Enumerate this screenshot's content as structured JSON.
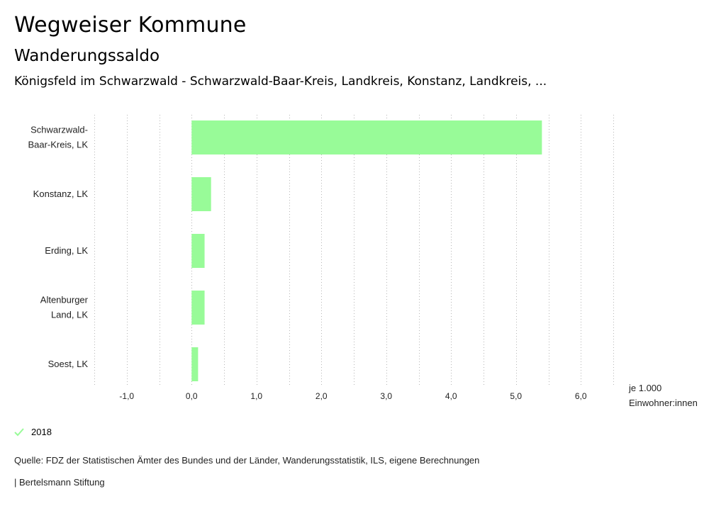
{
  "header": {
    "title": "Wegweiser Kommune",
    "subtitle": "Wanderungssaldo",
    "region": "Königsfeld im Schwarzwald - Schwarzwald-Baar-Kreis, Landkreis, Konstanz, Landkreis, ..."
  },
  "chart_data": {
    "type": "bar",
    "orientation": "horizontal",
    "categories": [
      [
        "Schwarzwald-",
        "Baar-Kreis, LK"
      ],
      [
        "Konstanz, LK"
      ],
      [
        "Erding, LK"
      ],
      [
        "Altenburger",
        "Land, LK"
      ],
      [
        "Soest, LK"
      ]
    ],
    "series": [
      {
        "name": "2018",
        "values": [
          5.4,
          0.3,
          0.2,
          0.2,
          0.1
        ],
        "color": "#98fb98"
      }
    ],
    "xlim": [
      -1.5,
      6.5
    ],
    "xticks": [
      -1,
      0,
      1,
      2,
      3,
      4,
      5,
      6
    ],
    "xtick_labels": [
      "-1,0",
      "0,0",
      "1,0",
      "2,0",
      "3,0",
      "4,0",
      "5,0",
      "6,0"
    ],
    "xlabel": [
      "je 1.000",
      "Einwohner:innen"
    ],
    "grid": true,
    "legend_position": "bottom-left"
  },
  "legend": {
    "label": "2018",
    "color": "#98fb98"
  },
  "footer": {
    "source": "Quelle: FDZ der Statistischen Ämter des Bundes und der Länder, Wanderungsstatistik, ILS, eigene Berechnungen",
    "brand": "| Bertelsmann Stiftung"
  }
}
